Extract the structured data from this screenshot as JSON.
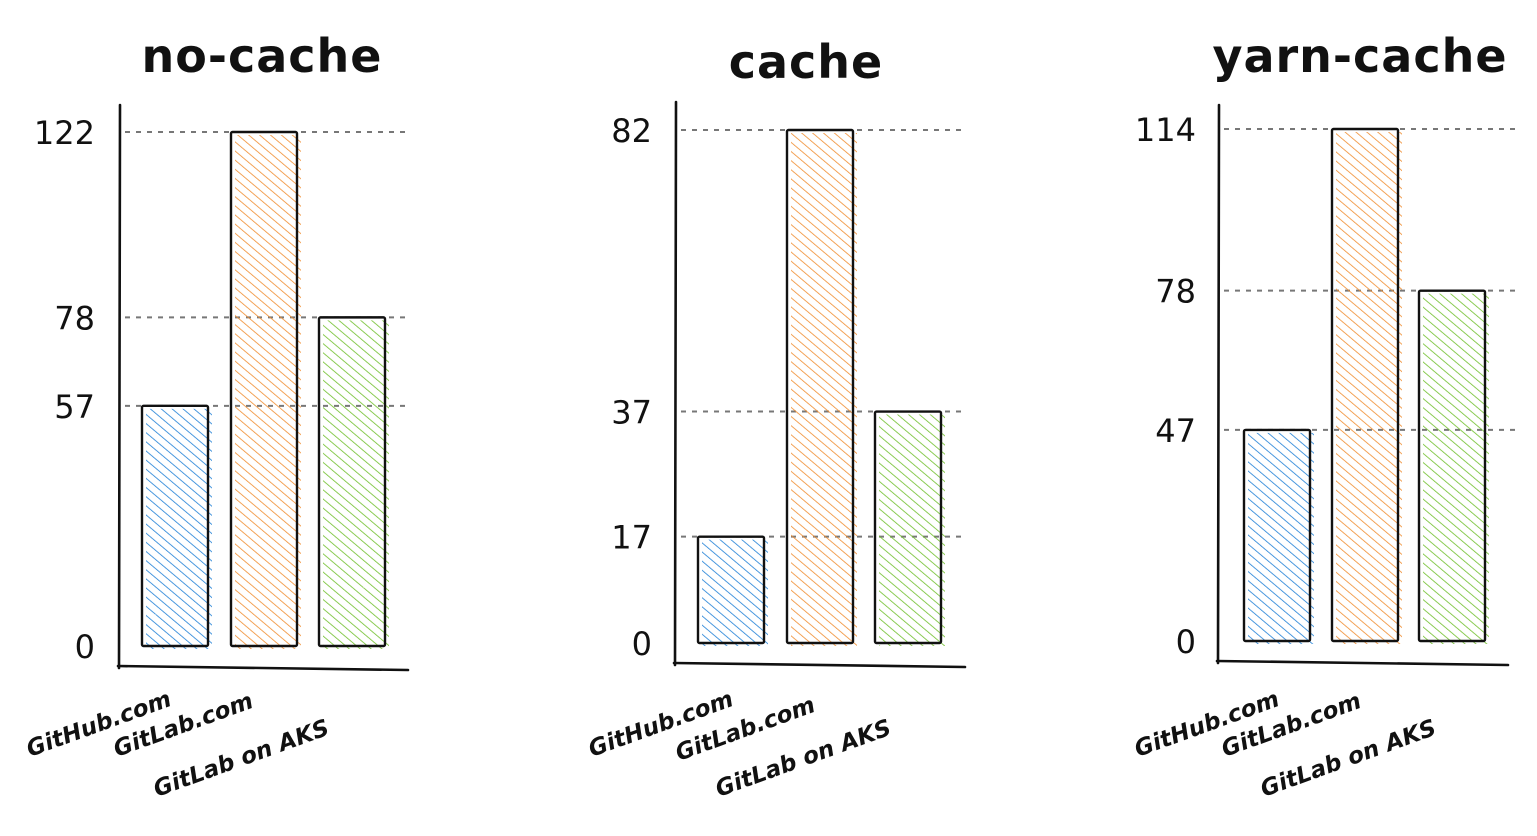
{
  "colors": {
    "github": "#1e7fd6",
    "gitlab": "#f08c2e",
    "aks": "#6fbf2a",
    "axis": "#111111",
    "gridline": "#777777",
    "bar_outline": "#111111",
    "background": "#ffffff"
  },
  "chart_data": [
    {
      "type": "bar",
      "title": "no-cache",
      "categories": [
        "GitHub.com",
        "GitLab.com",
        "GitLab on AKS"
      ],
      "values": [
        57,
        122,
        78
      ],
      "yticks": [
        0,
        57,
        78,
        122
      ],
      "ylim": [
        0,
        122
      ],
      "xlabel": "",
      "ylabel": "",
      "grid": "dashed lines at bar values",
      "legend": "none",
      "bar_colors": [
        "github",
        "gitlab",
        "aks"
      ]
    },
    {
      "type": "bar",
      "title": "cache",
      "categories": [
        "GitHub.com",
        "GitLab.com",
        "GitLab on AKS"
      ],
      "values": [
        17,
        82,
        37
      ],
      "yticks": [
        0,
        17,
        37,
        82
      ],
      "ylim": [
        0,
        82
      ],
      "xlabel": "",
      "ylabel": "",
      "grid": "dashed lines at bar values",
      "legend": "none",
      "bar_colors": [
        "github",
        "gitlab",
        "aks"
      ]
    },
    {
      "type": "bar",
      "title": "yarn-cache",
      "categories": [
        "GitHub.com",
        "GitLab.com",
        "GitLab on AKS"
      ],
      "values": [
        47,
        114,
        78
      ],
      "yticks": [
        0,
        47,
        78,
        114
      ],
      "ylim": [
        0,
        114
      ],
      "xlabel": "",
      "ylabel": "",
      "grid": "dashed lines at bar values",
      "legend": "none",
      "bar_colors": [
        "github",
        "gitlab",
        "aks"
      ]
    }
  ]
}
